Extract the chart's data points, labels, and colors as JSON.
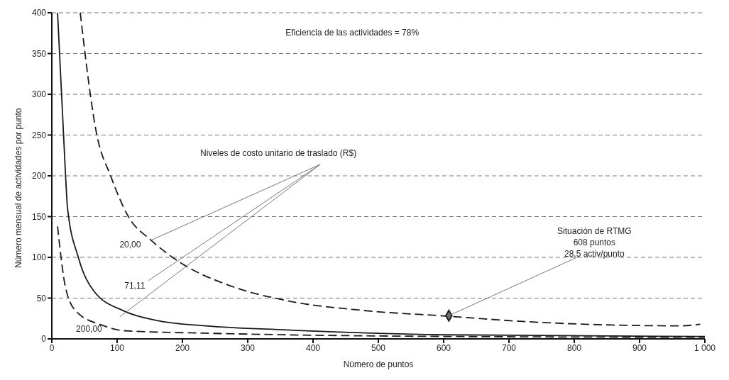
{
  "chart_data": {
    "type": "line",
    "xlabel": "Número de puntos",
    "ylabel": "Número mensual de actividades por punto",
    "xlim": [
      0,
      1000
    ],
    "ylim": [
      0,
      400
    ],
    "xticks": [
      0,
      100,
      200,
      300,
      400,
      500,
      600,
      700,
      800,
      900,
      {
        "value": 1000,
        "label": "1 000"
      }
    ],
    "yticks": [
      0,
      50,
      100,
      150,
      200,
      250,
      300,
      350,
      400
    ],
    "grid": "y",
    "marker": "none",
    "series": [
      {
        "name": "20,00",
        "color": "#1a1a1a",
        "line_style": "dashed",
        "x": [
          43.5,
          69,
          90,
          118,
          152,
          200,
          270,
          359,
          475,
          603,
          730,
          857,
          963,
          993
        ],
        "values": [
          400,
          250,
          200,
          149,
          121,
          92,
          66,
          47,
          35,
          28,
          21,
          17,
          16,
          18
        ]
      },
      {
        "name": "71,11",
        "color": "#1a1a1a",
        "line_style": "solid",
        "x": [
          8.8,
          21,
          24,
          40.6,
          65,
          111,
          164,
          235,
          359,
          603,
          1000
        ],
        "values": [
          400,
          201,
          161,
          100,
          58,
          34,
          22,
          16,
          11,
          5,
          3
        ]
      },
      {
        "name": "200,00",
        "color": "#1a1a1a",
        "line_style": "dashed",
        "x": [
          8.8,
          21,
          37,
          76,
          111,
          235,
          359,
          600,
          1000
        ],
        "values": [
          138,
          63,
          34,
          17,
          10,
          7,
          5,
          3,
          2
        ]
      },
      {
        "type": "scatter",
        "color": "#6e6e6e",
        "marker": "diamond",
        "x": [
          608
        ],
        "values": [
          28.5
        ]
      }
    ],
    "annotations": [
      "Eficiencia de las actividades = 78%",
      {
        "text": "Niveles de costo unitario de traslado (R$)",
        "x": 152,
        "y": 121
      },
      {
        "text": "Situación de RTMG\n608 puntos\n28,5 activ/punto",
        "x": 608,
        "y": 28.5
      }
    ]
  }
}
